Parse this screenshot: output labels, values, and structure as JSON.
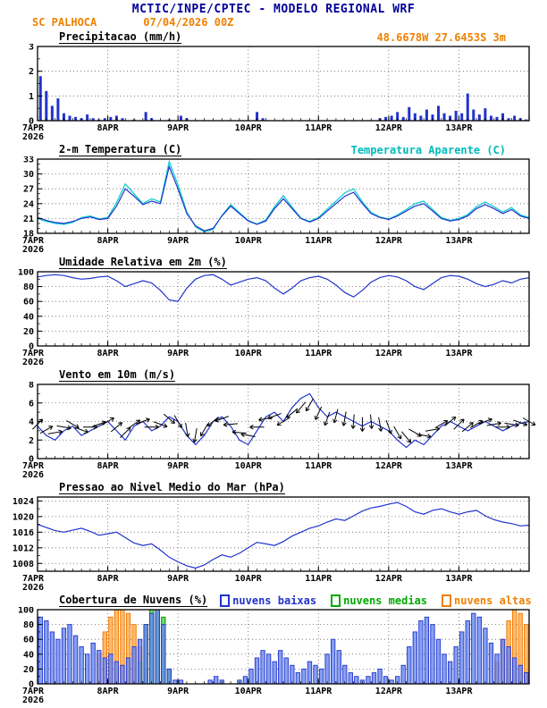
{
  "header": {
    "title": "MCTIC/INPE/CPTEC - MODELO REGIONAL WRF",
    "station": "SC PALHOCA",
    "run": "07/04/2026 00Z"
  },
  "colors": {
    "title_navy": "#000099",
    "orange": "#f08000",
    "cyan": "#00bbbb",
    "line_blue": "#2233cc",
    "green": "#00aa00",
    "black": "#000000"
  },
  "x_axis": {
    "tick_labels": [
      "7APR",
      "8APR",
      "9APR",
      "10APR",
      "11APR",
      "12APR",
      "13APR"
    ],
    "year": "2026",
    "span_days": 7
  },
  "chart_data": [
    {
      "id": "precip",
      "type": "bar",
      "title": "Precipitacao (mm/h)",
      "annotation": "48.6678W 27.6453S 3m",
      "ylim": [
        0,
        3
      ],
      "yticks": [
        0,
        1,
        2,
        3
      ],
      "yminor": 0.5,
      "step_days": 0.0833333,
      "color": "#2233cc",
      "values": [
        1.8,
        1.2,
        0.6,
        0.9,
        0.3,
        0.2,
        0.15,
        0.1,
        0.25,
        0.1,
        0.05,
        0.1,
        0.15,
        0.2,
        0.1,
        0,
        0.05,
        0,
        0.35,
        0.1,
        0,
        0,
        0.05,
        0,
        0.2,
        0.1,
        0,
        0,
        0,
        0,
        0,
        0,
        0,
        0,
        0,
        0,
        0,
        0.35,
        0.1,
        0,
        0,
        0,
        0,
        0,
        0,
        0,
        0,
        0,
        0,
        0,
        0,
        0,
        0,
        0,
        0,
        0,
        0,
        0,
        0.1,
        0.15,
        0.2,
        0.35,
        0.15,
        0.55,
        0.3,
        0.2,
        0.45,
        0.25,
        0.6,
        0.3,
        0.2,
        0.4,
        0.3,
        1.1,
        0.45,
        0.25,
        0.5,
        0.2,
        0.15,
        0.3,
        0.1,
        0.2,
        0.1,
        0.05
      ]
    },
    {
      "id": "temp",
      "type": "line",
      "title": "2-m Temperatura (C)",
      "annotation": "Temperatura Aparente (C)",
      "ylim": [
        18,
        33
      ],
      "yticks": [
        18,
        21,
        24,
        27,
        30,
        33
      ],
      "yminor": 1,
      "step_days": 0.125,
      "series": [
        {
          "name": "Temperatura Aparente (C)",
          "color": "#00cccc",
          "values": [
            21.0,
            20.4,
            20.0,
            19.8,
            20.2,
            21.2,
            21.5,
            20.9,
            21.2,
            24.2,
            28.0,
            26.0,
            24.0,
            25.0,
            24.3,
            32.5,
            27.8,
            22.3,
            19.3,
            18.3,
            18.8,
            21.6,
            23.8,
            22.2,
            20.6,
            19.9,
            20.7,
            23.4,
            25.6,
            23.3,
            21.1,
            20.4,
            21.2,
            22.9,
            24.5,
            26.2,
            27.0,
            24.4,
            22.2,
            21.3,
            20.9,
            21.7,
            22.8,
            24.0,
            24.5,
            22.8,
            21.2,
            20.6,
            21.0,
            21.8,
            23.4,
            24.3,
            23.4,
            22.3,
            23.2,
            21.7,
            21.2
          ]
        },
        {
          "name": "2-m Temperatura (C)",
          "color": "#2233cc",
          "values": [
            21.2,
            20.6,
            20.2,
            20.0,
            20.4,
            21.0,
            21.3,
            20.8,
            21.0,
            23.5,
            27.0,
            25.5,
            23.8,
            24.5,
            24.0,
            31.5,
            27.0,
            22.0,
            19.5,
            18.5,
            19.0,
            21.5,
            23.5,
            22.0,
            20.5,
            19.8,
            20.5,
            23.0,
            25.0,
            23.0,
            21.0,
            20.3,
            21.0,
            22.5,
            24.0,
            25.5,
            26.3,
            24.0,
            22.0,
            21.2,
            20.8,
            21.5,
            22.5,
            23.5,
            24.0,
            22.5,
            21.0,
            20.5,
            20.8,
            21.5,
            23.0,
            23.8,
            23.0,
            22.0,
            22.8,
            21.5,
            21.0
          ]
        }
      ]
    },
    {
      "id": "rh",
      "type": "line",
      "title": "Umidade Relativa em 2m (%)",
      "ylim": [
        0,
        100
      ],
      "yticks": [
        0,
        20,
        40,
        60,
        80,
        100
      ],
      "yminor": 10,
      "step_days": 0.125,
      "series": [
        {
          "name": "Umidade Relativa em 2m",
          "color": "#2233cc",
          "values": [
            93,
            95,
            96,
            95,
            92,
            90,
            91,
            93,
            94,
            88,
            80,
            84,
            88,
            85,
            75,
            62,
            60,
            78,
            90,
            95,
            96,
            90,
            82,
            86,
            90,
            92,
            88,
            78,
            70,
            78,
            88,
            92,
            94,
            90,
            82,
            72,
            66,
            75,
            86,
            92,
            95,
            93,
            88,
            80,
            76,
            84,
            92,
            95,
            94,
            90,
            84,
            80,
            83,
            88,
            85,
            90,
            92
          ]
        }
      ]
    },
    {
      "id": "wind",
      "type": "wind",
      "title": "Vento em 10m (m/s)",
      "ylim": [
        0,
        8
      ],
      "yticks": [
        0,
        2,
        4,
        6,
        8
      ],
      "yminor": 1,
      "step_days": 0.125,
      "series": [
        {
          "name": "Velocidade do Vento",
          "color": "#2233cc",
          "values": [
            3.5,
            2.5,
            2.0,
            3.0,
            3.5,
            2.5,
            3.0,
            3.5,
            4.0,
            3.0,
            2.0,
            3.5,
            4.0,
            3.0,
            3.5,
            4.5,
            4.0,
            2.5,
            1.5,
            2.5,
            4.0,
            4.5,
            3.5,
            2.0,
            1.5,
            3.0,
            4.5,
            5.0,
            4.0,
            5.5,
            6.5,
            7.0,
            5.5,
            4.5,
            5.0,
            4.5,
            4.0,
            3.5,
            4.0,
            3.5,
            3.0,
            2.0,
            1.2,
            2.0,
            1.5,
            2.5,
            3.5,
            4.0,
            3.5,
            3.0,
            3.5,
            4.0,
            3.5,
            3.0,
            3.5,
            3.8,
            4.0
          ]
        }
      ],
      "directions_deg": [
        45,
        60,
        80,
        100,
        120,
        110,
        90,
        70,
        60,
        50,
        45,
        55,
        70,
        90,
        110,
        130,
        150,
        170,
        190,
        210,
        230,
        250,
        265,
        275,
        280,
        270,
        260,
        250,
        240,
        230,
        220,
        210,
        205,
        200,
        195,
        190,
        185,
        180,
        175,
        170,
        160,
        150,
        140,
        120,
        100,
        80,
        60,
        50,
        45,
        50,
        60,
        70,
        80,
        90,
        100,
        110,
        120
      ]
    },
    {
      "id": "pressure",
      "type": "line",
      "title": "Pressao ao Nivel Medio do Mar (hPa)",
      "ylim": [
        1006,
        1025
      ],
      "yticks": [
        1008,
        1012,
        1016,
        1020,
        1024
      ],
      "yminor": 2,
      "step_days": 0.125,
      "series": [
        {
          "name": "Pressao ao Nivel Medio do Mar",
          "color": "#2233cc",
          "values": [
            1018.0,
            1017.2,
            1016.4,
            1016.0,
            1016.5,
            1017.0,
            1016.2,
            1015.2,
            1015.6,
            1016.0,
            1014.6,
            1013.2,
            1012.6,
            1013.0,
            1011.4,
            1009.6,
            1008.4,
            1007.4,
            1006.8,
            1007.6,
            1009.0,
            1010.2,
            1009.6,
            1010.6,
            1012.0,
            1013.4,
            1013.0,
            1012.6,
            1013.6,
            1015.0,
            1016.0,
            1017.0,
            1017.6,
            1018.6,
            1019.4,
            1019.0,
            1020.2,
            1021.4,
            1022.2,
            1022.6,
            1023.2,
            1023.6,
            1022.6,
            1021.2,
            1020.6,
            1021.6,
            1022.0,
            1021.2,
            1020.6,
            1021.2,
            1021.6,
            1020.2,
            1019.2,
            1018.6,
            1018.2,
            1017.6,
            1017.8
          ]
        }
      ]
    },
    {
      "id": "clouds",
      "type": "multibar",
      "title": "Cobertura de Nuvens (%)",
      "ylim": [
        0,
        100
      ],
      "yticks": [
        0,
        20,
        40,
        60,
        80,
        100
      ],
      "yminor": 10,
      "step_days": 0.0833333,
      "series": [
        {
          "name": "nuvens altas",
          "color": "#ee7700",
          "fill": "#ffaa44",
          "values": [
            0,
            0,
            0,
            0,
            0,
            0,
            0,
            0,
            0,
            0,
            40,
            70,
            90,
            100,
            100,
            95,
            80,
            50,
            20,
            0,
            0,
            0,
            0,
            0,
            0,
            0,
            0,
            0,
            0,
            0,
            0,
            0,
            0,
            0,
            0,
            0,
            0,
            0,
            0,
            0,
            0,
            0,
            0,
            0,
            0,
            0,
            0,
            0,
            0,
            0,
            0,
            0,
            0,
            0,
            0,
            0,
            0,
            0,
            0,
            0,
            0,
            0,
            0,
            0,
            0,
            0,
            0,
            0,
            0,
            0,
            0,
            0,
            0,
            0,
            0,
            0,
            0,
            0,
            30,
            60,
            85,
            100,
            95,
            80
          ]
        },
        {
          "name": "nuvens medias",
          "color": "#009900",
          "fill": "#44cc44",
          "values": [
            0,
            0,
            0,
            0,
            0,
            0,
            0,
            0,
            0,
            0,
            0,
            0,
            0,
            0,
            0,
            0,
            0,
            30,
            80,
            100,
            100,
            90,
            20,
            0,
            0,
            0,
            0,
            0,
            0,
            0,
            0,
            0,
            0,
            0,
            0,
            0,
            0,
            0,
            0,
            0,
            0,
            0,
            0,
            0,
            0,
            0,
            0,
            0,
            0,
            0,
            0,
            0,
            0,
            0,
            0,
            0,
            0,
            0,
            0,
            0,
            0,
            0,
            0,
            0,
            0,
            0,
            0,
            0,
            0,
            0,
            0,
            0,
            0,
            0,
            0,
            0,
            0,
            0,
            0,
            0,
            0,
            0,
            0,
            0
          ]
        },
        {
          "name": "nuvens baixas",
          "color": "#2233cc",
          "fill": "#6688ee",
          "values": [
            90,
            85,
            70,
            60,
            75,
            80,
            65,
            50,
            40,
            55,
            45,
            35,
            40,
            30,
            25,
            35,
            50,
            60,
            80,
            95,
            100,
            80,
            20,
            5,
            5,
            0,
            0,
            0,
            0,
            5,
            10,
            5,
            0,
            0,
            5,
            10,
            20,
            35,
            45,
            40,
            30,
            45,
            35,
            25,
            15,
            20,
            30,
            25,
            20,
            40,
            60,
            45,
            25,
            15,
            10,
            5,
            10,
            15,
            20,
            10,
            5,
            10,
            25,
            50,
            70,
            85,
            90,
            80,
            60,
            40,
            30,
            50,
            70,
            85,
            95,
            90,
            75,
            55,
            40,
            60,
            50,
            35,
            25,
            15
          ]
        }
      ],
      "legend": [
        {
          "label": "nuvens baixas",
          "color": "#2233cc"
        },
        {
          "label": "nuvens medias",
          "color": "#00aa00"
        },
        {
          "label": "nuvens altas",
          "color": "#f08000"
        }
      ]
    }
  ]
}
